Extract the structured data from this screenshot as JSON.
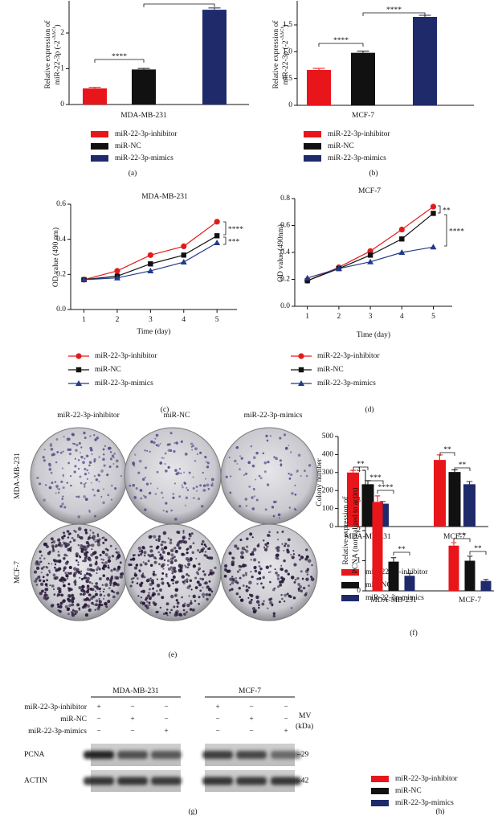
{
  "chart_data": [
    {
      "type": "bar",
      "panel_label": "(a)",
      "ylabel": [
        "Relative expression of",
        "miR-22-3p (-2"
      ],
      "ylabel_sup": "-ΔΔCt",
      "ylabel_end": ")",
      "categories": [
        "MDA-MB-231"
      ],
      "series": [
        {
          "name": "miR-22-3p-inhibitor",
          "color": "#e8161b",
          "values": [
            0.45
          ],
          "errors": [
            0.03
          ]
        },
        {
          "name": "miR-NC",
          "color": "#111111",
          "values": [
            0.98
          ],
          "errors": [
            0.03
          ]
        },
        {
          "name": "miR-22-3p-mimics",
          "color": "#1f2a6b",
          "values": [
            2.65
          ],
          "errors": [
            0.05
          ]
        }
      ],
      "ylim": [
        0,
        2.9
      ],
      "yticks": [
        0,
        1,
        2
      ],
      "annotations": [
        "****"
      ]
    },
    {
      "type": "bar",
      "panel_label": "(b)",
      "ylabel": [
        "Relative expression of",
        "miR-22-3p (-2"
      ],
      "ylabel_sup": "-ΔΔCt",
      "ylabel_end": ")",
      "categories": [
        "MCF-7"
      ],
      "series": [
        {
          "name": "miR-22-3p-inhibitor",
          "color": "#e8161b",
          "values": [
            0.66
          ],
          "errors": [
            0.03
          ]
        },
        {
          "name": "miR-NC",
          "color": "#111111",
          "values": [
            0.98
          ],
          "errors": [
            0.03
          ]
        },
        {
          "name": "miR-22-3p-mimics",
          "color": "#1f2a6b",
          "values": [
            1.65
          ],
          "errors": [
            0.03
          ]
        }
      ],
      "ylim": [
        0,
        1.95
      ],
      "yticks": [
        0,
        0.5,
        {
          "value": 1,
          "label": "1.0"
        },
        1.5
      ],
      "annotations": [
        "****",
        "****"
      ]
    },
    {
      "type": "line",
      "panel_label": "(c)",
      "title": "MDA-MB-231",
      "ylabel": [
        "OD value (490 nm)"
      ],
      "xlabel": "Time (day)",
      "x": [
        1,
        2,
        3,
        4,
        5
      ],
      "series": [
        {
          "name": "miR-22-3p-inhibitor",
          "color": "#e31a1c",
          "marker": "o",
          "values": [
            0.17,
            0.22,
            0.31,
            0.36,
            0.5
          ]
        },
        {
          "name": "miR-NC",
          "color": "#111111",
          "marker": "s",
          "values": [
            0.17,
            0.19,
            0.26,
            0.31,
            0.42
          ]
        },
        {
          "name": "miR-22-3p-mimics",
          "color": "#223a8a",
          "marker": "^",
          "values": [
            0.17,
            0.18,
            0.22,
            0.27,
            0.38
          ]
        }
      ],
      "xlim": [
        0.6,
        5.6
      ],
      "xticks": [
        1,
        2,
        3,
        4,
        5
      ],
      "ylim": [
        0,
        0.6
      ],
      "yticks": [
        {
          "value": 0,
          "label": "0.0"
        },
        0.2,
        0.4,
        0.6
      ],
      "annotations": [
        "****",
        "***"
      ]
    },
    {
      "type": "line",
      "panel_label": "(d)",
      "title": "MCF-7",
      "ylabel": [
        "OD value (490nm)"
      ],
      "xlabel": "Time (day)",
      "x": [
        1,
        2,
        3,
        4,
        5
      ],
      "series": [
        {
          "name": "miR-22-3p-inhibitor",
          "color": "#e31a1c",
          "marker": "o",
          "values": [
            0.19,
            0.29,
            0.41,
            0.57,
            0.74
          ]
        },
        {
          "name": "miR-NC",
          "color": "#111111",
          "marker": "s",
          "values": [
            0.19,
            0.28,
            0.38,
            0.5,
            0.69
          ]
        },
        {
          "name": "miR-22-3p-mimics",
          "color": "#223a8a",
          "marker": "^",
          "values": [
            0.21,
            0.28,
            0.33,
            0.4,
            0.44
          ]
        }
      ],
      "xlim": [
        0.6,
        5.6
      ],
      "xticks": [
        1,
        2,
        3,
        4,
        5
      ],
      "ylim": [
        0,
        0.8
      ],
      "yticks": [
        {
          "value": 0,
          "label": "0.0"
        },
        0.2,
        0.4,
        0.6,
        0.8
      ],
      "annotations": [
        "**",
        "****"
      ]
    },
    {
      "type": "bar",
      "panel_label": "(f)",
      "ylabel": [
        "Colony number"
      ],
      "categories": [
        "MDA-MB-231",
        "MCF-7"
      ],
      "series": [
        {
          "name": "miR-22-3p-inhibitor",
          "color": "#e8161b",
          "values": [
            300,
            370
          ],
          "errors": [
            12,
            28
          ]
        },
        {
          "name": "miR-NC",
          "color": "#111111",
          "values": [
            235,
            303
          ],
          "errors": [
            20,
            12
          ]
        },
        {
          "name": "miR-22-3p-mimics",
          "color": "#1f2a6b",
          "values": [
            127,
            235
          ],
          "errors": [
            12,
            15
          ]
        }
      ],
      "ylim": [
        0,
        500
      ],
      "yticks": [
        0,
        100,
        200,
        300,
        400,
        500
      ],
      "annotations": [
        "**",
        "***",
        "**",
        "**"
      ]
    },
    {
      "type": "bar",
      "panel_label": "(h)",
      "ylabel": [
        "Relative expression of",
        "PCNA (normalized to actin)"
      ],
      "categories": [
        "MDA-MB-231",
        "MCF-7"
      ],
      "series": [
        {
          "name": "miR-22-3p-inhibitor",
          "color": "#e8161b",
          "values": [
            2.95,
            1.5
          ],
          "errors": [
            0.2,
            0.1
          ]
        },
        {
          "name": "miR-NC",
          "color": "#111111",
          "values": [
            0.97,
            1.0
          ],
          "errors": [
            0.13,
            0.15
          ]
        },
        {
          "name": "miR-22-3p-mimics",
          "color": "#1f2a6b",
          "values": [
            0.5,
            0.33
          ],
          "errors": [
            0.08,
            0.05
          ]
        }
      ],
      "ylim": [
        0,
        4
      ],
      "yticks": [
        0,
        1,
        2,
        3,
        4
      ],
      "annotations": [
        "****",
        "**",
        "**",
        "**"
      ]
    }
  ],
  "colony_assay": {
    "panel_label": "(e)",
    "columns": [
      "miR-22-3p-inhibitor",
      "miR-NC",
      "miR-22-3p-mimics"
    ],
    "rows": [
      "MDA-MB-231",
      "MCF-7"
    ]
  },
  "western_blot": {
    "panel_label": "(g)",
    "cell_lines": [
      "MDA-MB-231",
      "MCF-7"
    ],
    "conditions": [
      "miR-22-3p-inhibitor",
      "miR-NC",
      "miR-22-3p-mimics"
    ],
    "signs": [
      [
        "+",
        "−",
        "−"
      ],
      [
        "−",
        "+",
        "−"
      ],
      [
        "−",
        "−",
        "+"
      ]
    ],
    "mw_header": [
      "MV",
      "(kDa)"
    ],
    "bands": [
      {
        "name": "PCNA",
        "mw": "–29"
      },
      {
        "name": "ACTIN",
        "mw": "–42"
      }
    ]
  }
}
